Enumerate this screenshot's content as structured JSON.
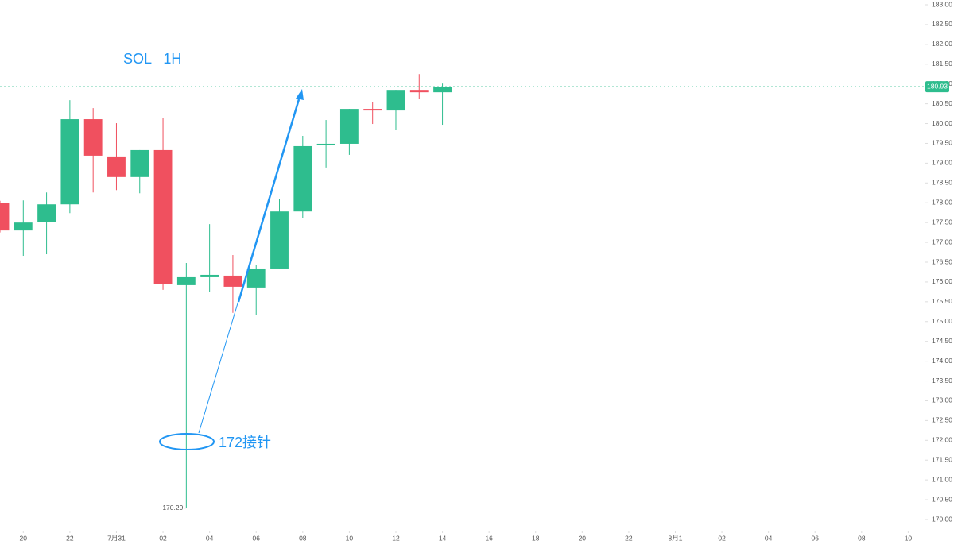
{
  "chart_data": {
    "type": "candlestick",
    "title": "SOL   1H",
    "annotation": "172接针",
    "x": [
      0,
      1,
      2,
      3,
      4,
      5,
      6,
      7,
      8,
      9,
      10,
      11,
      12,
      13,
      14,
      15,
      16,
      17,
      18,
      19
    ],
    "open": [
      178.0,
      177.3,
      177.52,
      177.96,
      180.11,
      179.17,
      178.65,
      179.33,
      175.92,
      176.12,
      176.16,
      175.86,
      176.34,
      177.78,
      179.45,
      179.49,
      180.37,
      180.33,
      180.85,
      180.79
    ],
    "high": [
      178.05,
      178.06,
      178.26,
      180.59,
      180.39,
      180.01,
      179.33,
      180.15,
      176.48,
      177.46,
      176.68,
      176.44,
      178.1,
      179.69,
      180.09,
      180.37,
      180.55,
      180.85,
      181.25,
      181.01
    ],
    "low": [
      177.25,
      176.66,
      176.7,
      177.74,
      178.26,
      178.32,
      178.24,
      175.8,
      170.29,
      175.74,
      175.22,
      175.16,
      176.32,
      177.62,
      178.89,
      179.21,
      179.99,
      179.83,
      180.63,
      179.97
    ],
    "close": [
      177.3,
      177.5,
      177.96,
      180.11,
      179.19,
      178.65,
      179.33,
      175.94,
      176.12,
      176.18,
      175.88,
      176.34,
      177.78,
      179.43,
      179.49,
      180.37,
      180.33,
      180.85,
      180.79,
      180.93
    ],
    "up_color": "#2ebd8e",
    "down_color": "#f0505f",
    "price_line": 180.93,
    "xlim": [
      0,
      39.6
    ],
    "xticks": [
      {
        "value": 1,
        "label": "20"
      },
      {
        "value": 3,
        "label": "22"
      },
      {
        "value": 5,
        "label": "7月31"
      },
      {
        "value": 7,
        "label": "02"
      },
      {
        "value": 9,
        "label": "04"
      },
      {
        "value": 11,
        "label": "06"
      },
      {
        "value": 13,
        "label": "08"
      },
      {
        "value": 15,
        "label": "10"
      },
      {
        "value": 17,
        "label": "12"
      },
      {
        "value": 19,
        "label": "14"
      },
      {
        "value": 21,
        "label": "16"
      },
      {
        "value": 23,
        "label": "18"
      },
      {
        "value": 25,
        "label": "20"
      },
      {
        "value": 27,
        "label": "22"
      },
      {
        "value": 29,
        "label": "8月1"
      },
      {
        "value": 31,
        "label": "02"
      },
      {
        "value": 33,
        "label": "04"
      },
      {
        "value": 35,
        "label": "06"
      },
      {
        "value": 37,
        "label": "08"
      },
      {
        "value": 39,
        "label": "10"
      }
    ],
    "ylim": [
      170.0,
      183.0
    ],
    "yticks": [
      {
        "value": 170,
        "label": "170.00"
      },
      {
        "value": 170.5,
        "label": "170.50"
      },
      {
        "value": 171,
        "label": "171.00"
      },
      {
        "value": 171.5,
        "label": "171.50"
      },
      {
        "value": 172,
        "label": "172.00"
      },
      {
        "value": 172.5,
        "label": "172.50"
      },
      {
        "value": 173,
        "label": "173.00"
      },
      {
        "value": 173.5,
        "label": "173.50"
      },
      {
        "value": 174,
        "label": "174.00"
      },
      {
        "value": 174.5,
        "label": "174.50"
      },
      {
        "value": 175,
        "label": "175.00"
      },
      {
        "value": 175.5,
        "label": "175.50"
      },
      {
        "value": 176,
        "label": "176.00"
      },
      {
        "value": 176.5,
        "label": "176.50"
      },
      {
        "value": 177,
        "label": "177.00"
      },
      {
        "value": 177.5,
        "label": "177.50"
      },
      {
        "value": 178,
        "label": "178.00"
      },
      {
        "value": 178.5,
        "label": "178.50"
      },
      {
        "value": 179,
        "label": "179.00"
      },
      {
        "value": 179.5,
        "label": "179.50"
      },
      {
        "value": 180,
        "label": "180.00"
      },
      {
        "value": 180.5,
        "label": "180.50"
      },
      {
        "value": 181,
        "label": "181.00"
      },
      {
        "value": 181.5,
        "label": "181.50"
      },
      {
        "value": 182,
        "label": "182.00"
      },
      {
        "value": 182.5,
        "label": "182.50"
      },
      {
        "value": 183,
        "label": "183.00"
      }
    ]
  }
}
